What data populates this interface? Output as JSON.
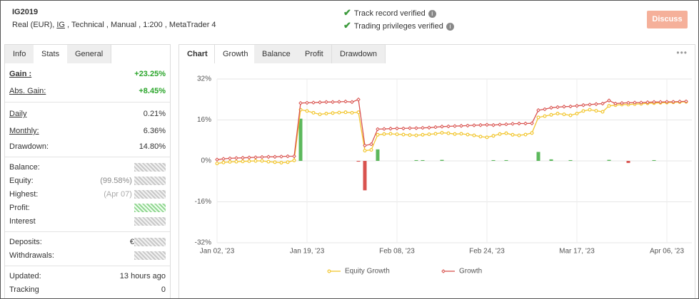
{
  "header": {
    "title": "IG2019",
    "meta": [
      "Real (EUR),",
      "IG",
      ", Technical , Manual , 1:200 , MetaTrader 4"
    ],
    "verifications": [
      "Track record verified",
      "Trading privileges verified"
    ],
    "button": "Discuss"
  },
  "left_tabs": [
    "Info",
    "Stats",
    "General"
  ],
  "stats": [
    [
      {
        "label": "Gain :",
        "value": "+23.25%"
      },
      {
        "label": "Abs. Gain:",
        "value": "+8.45%"
      }
    ],
    [
      {
        "label": "Daily",
        "value": "0.21%"
      },
      {
        "label": "Monthly:",
        "value": "6.36%"
      },
      {
        "label": "Drawdown:",
        "value": "14.80%"
      }
    ],
    [
      {
        "label": "Balance:"
      },
      {
        "label": "Equity:",
        "value": "(99.58%)"
      },
      {
        "label": "Highest:",
        "value": "(Apr 07)"
      },
      {
        "label": "Profit:"
      },
      {
        "label": "Interest"
      }
    ],
    [
      {
        "label": "Deposits:",
        "value": "€"
      },
      {
        "label": "Withdrawals:"
      }
    ],
    [
      {
        "label": "Updated:",
        "value": "13 hours ago"
      },
      {
        "label": "Tracking",
        "value": "0"
      }
    ]
  ],
  "chart_tabs": {
    "label": "Chart",
    "tabs": [
      "Growth",
      "Balance",
      "Profit",
      "Drawdown"
    ]
  },
  "chart_data": {
    "type": "line",
    "categories": [
      "Jan 02, '23",
      null,
      null,
      null,
      null,
      null,
      null,
      null,
      null,
      null,
      null,
      null,
      null,
      null,
      "Jan 19, '23",
      null,
      null,
      null,
      null,
      null,
      null,
      null,
      null,
      null,
      null,
      null,
      null,
      null,
      "Feb 08, '23",
      null,
      null,
      null,
      null,
      null,
      null,
      null,
      null,
      null,
      null,
      null,
      null,
      null,
      "Feb 24, '23",
      null,
      null,
      null,
      null,
      null,
      null,
      null,
      null,
      null,
      null,
      null,
      null,
      null,
      "Mar 17, '23",
      null,
      null,
      null,
      null,
      null,
      null,
      null,
      null,
      null,
      null,
      null,
      null,
      null,
      "Apr 06, '23",
      null,
      null,
      null
    ],
    "series": [
      {
        "name": "Equity Growth",
        "color": "#f2c62e",
        "values": [
          -1.0,
          -0.6,
          -0.4,
          -0.3,
          -0.2,
          -0.1,
          0.0,
          0.0,
          -0.3,
          -0.5,
          -0.7,
          -0.5,
          0.2,
          20.0,
          19.5,
          18.8,
          18.2,
          18.5,
          18.7,
          18.9,
          19.0,
          18.8,
          19.0,
          4.0,
          4.3,
          10.2,
          10.5,
          10.6,
          10.4,
          10.3,
          10.1,
          10.0,
          10.2,
          10.4,
          10.6,
          11.0,
          10.8,
          10.5,
          10.6,
          10.3,
          10.0,
          9.5,
          9.2,
          9.8,
          10.5,
          10.8,
          10.2,
          10.0,
          10.3,
          10.9,
          17.0,
          17.5,
          18.0,
          18.5,
          18.2,
          17.8,
          18.5,
          19.5,
          20.0,
          19.6,
          19.2,
          21.5,
          21.8,
          22.0,
          22.0,
          22.2,
          22.3,
          22.5,
          22.6,
          22.7,
          22.8,
          22.9,
          23.0,
          23.1
        ]
      },
      {
        "name": "Growth",
        "color": "#d9534f",
        "values": [
          0.5,
          0.8,
          1.0,
          1.1,
          1.2,
          1.3,
          1.4,
          1.5,
          1.6,
          1.6,
          1.7,
          1.8,
          1.8,
          22.6,
          22.7,
          22.8,
          22.9,
          23.0,
          23.0,
          23.1,
          23.2,
          23.0,
          24.0,
          6.0,
          6.5,
          12.4,
          12.5,
          12.6,
          12.7,
          12.7,
          12.8,
          12.8,
          12.9,
          13.0,
          13.2,
          13.4,
          13.5,
          13.6,
          13.7,
          13.8,
          13.9,
          14.0,
          14.1,
          14.0,
          14.2,
          14.3,
          14.5,
          14.6,
          14.6,
          14.7,
          19.8,
          20.2,
          20.8,
          21.0,
          21.2,
          21.3,
          21.5,
          21.8,
          22.0,
          22.2,
          22.4,
          23.6,
          22.4,
          22.6,
          22.7,
          22.8,
          22.8,
          22.9,
          23.0,
          23.0,
          23.1,
          23.1,
          23.2,
          23.25
        ]
      }
    ],
    "bars": {
      "colors": [
        "#5cb85c",
        "#d9534f"
      ],
      "values": [
        0,
        0,
        0,
        0,
        0,
        0,
        0,
        0,
        0,
        0,
        0,
        0,
        0,
        16.5,
        0,
        0,
        0,
        0,
        0,
        0,
        0,
        0,
        -0.3,
        -11.5,
        0,
        4.5,
        0,
        0,
        0,
        0,
        0,
        0.3,
        0.3,
        0,
        0,
        0.4,
        0,
        0,
        0,
        0,
        0,
        0,
        0,
        0.3,
        0,
        0.3,
        0,
        0,
        0,
        0,
        3.5,
        0,
        0.6,
        0,
        0,
        0.3,
        0,
        0,
        0,
        0,
        0,
        0.4,
        0,
        0,
        -0.8,
        0,
        0,
        0,
        0.3,
        0,
        0,
        0,
        0,
        0
      ]
    },
    "ylim": [
      -32,
      32
    ],
    "yticks": [
      {
        "value": 32,
        "label": "32%"
      },
      {
        "value": 16,
        "label": "16%"
      },
      {
        "value": 0,
        "label": "0%"
      },
      {
        "value": -16,
        "label": "-16%"
      },
      {
        "value": -32,
        "label": "-32%"
      }
    ],
    "grid": true
  }
}
